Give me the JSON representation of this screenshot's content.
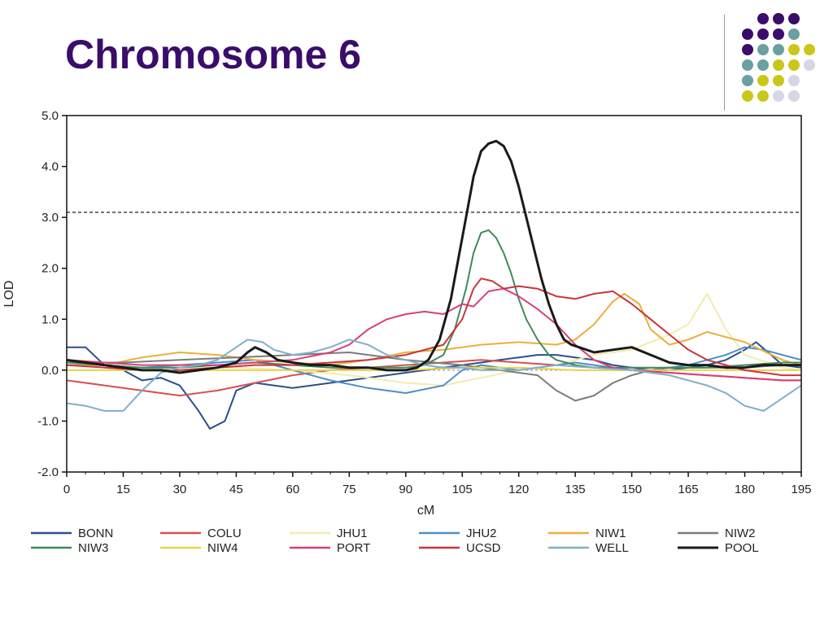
{
  "slide": {
    "title": "Chromosome 6",
    "deco_colors": {
      "purple": "#3a0d6b",
      "teal": "#6b9fa0",
      "yellow": "#c9c71a",
      "lavender": "#d6d6e6"
    }
  },
  "chart_data": {
    "type": "line",
    "title": "",
    "xlabel": "cM",
    "ylabel": "LOD",
    "xlim": [
      0,
      195
    ],
    "ylim": [
      -2.0,
      5.0
    ],
    "xticks": [
      0,
      15,
      30,
      45,
      60,
      75,
      90,
      105,
      120,
      135,
      150,
      165,
      180,
      195
    ],
    "xtick_labels": [
      "0",
      "15",
      "30",
      "45",
      "60",
      "75",
      "90",
      "105",
      "120",
      "135",
      "150",
      "165",
      "180",
      "195"
    ],
    "yticks": [
      -2,
      -1,
      0,
      1,
      2,
      3,
      4,
      5
    ],
    "ytick_labels": [
      "-2.0",
      "-1.0",
      "0.0",
      "1.0",
      "2.0",
      "3.0",
      "4.0",
      "5.0"
    ],
    "threshold": 3.1,
    "grid": false,
    "legend_position": "bottom",
    "series": [
      {
        "name": "BONN",
        "color": "#2c4f8c",
        "x": [
          0,
          5,
          10,
          15,
          20,
          25,
          30,
          35,
          38,
          42,
          45,
          50,
          55,
          60,
          65,
          70,
          75,
          80,
          85,
          90,
          95,
          100,
          105,
          110,
          115,
          120,
          125,
          130,
          135,
          140,
          145,
          150,
          155,
          160,
          165,
          170,
          175,
          180,
          183,
          187,
          190,
          195
        ],
        "y": [
          0.45,
          0.45,
          0.1,
          0.0,
          -0.2,
          -0.15,
          -0.3,
          -0.8,
          -1.15,
          -1.0,
          -0.4,
          -0.25,
          -0.3,
          -0.35,
          -0.3,
          -0.25,
          -0.2,
          -0.15,
          -0.1,
          -0.05,
          0.0,
          0.05,
          0.1,
          0.15,
          0.2,
          0.25,
          0.3,
          0.3,
          0.25,
          0.2,
          0.1,
          0.05,
          0.0,
          0.0,
          0.05,
          0.1,
          0.2,
          0.4,
          0.55,
          0.3,
          0.1,
          0.05
        ]
      },
      {
        "name": "COLU",
        "color": "#d65050",
        "x": [
          0,
          10,
          20,
          30,
          40,
          50,
          60,
          70,
          80,
          90,
          100,
          110,
          120,
          130,
          140,
          150,
          160,
          170,
          180,
          190,
          195
        ],
        "y": [
          -0.2,
          -0.3,
          -0.4,
          -0.5,
          -0.4,
          -0.25,
          -0.1,
          0.0,
          0.05,
          0.1,
          0.15,
          0.2,
          0.15,
          0.1,
          0.05,
          0.0,
          -0.05,
          -0.1,
          -0.15,
          -0.2,
          -0.2
        ]
      },
      {
        "name": "JHU1",
        "color": "#f2ecb0",
        "x": [
          0,
          15,
          30,
          45,
          60,
          75,
          90,
          100,
          110,
          120,
          130,
          140,
          150,
          160,
          165,
          170,
          175,
          180,
          190,
          195
        ],
        "y": [
          0.0,
          0.0,
          0.05,
          0.05,
          0.0,
          -0.1,
          -0.25,
          -0.3,
          -0.15,
          0.0,
          0.1,
          0.3,
          0.4,
          0.7,
          0.9,
          1.5,
          0.8,
          0.3,
          0.05,
          0.0
        ]
      },
      {
        "name": "JHU2",
        "color": "#4d8fc8",
        "x": [
          0,
          10,
          20,
          30,
          40,
          50,
          60,
          70,
          80,
          90,
          100,
          105,
          110,
          115,
          120,
          125,
          130,
          135,
          140,
          145,
          150,
          155,
          160,
          165,
          170,
          175,
          180,
          185,
          190,
          195
        ],
        "y": [
          0.1,
          0.1,
          0.05,
          0.1,
          0.15,
          0.2,
          0.0,
          -0.2,
          -0.35,
          -0.45,
          -0.3,
          0.0,
          0.1,
          0.05,
          0.0,
          0.05,
          0.1,
          0.15,
          0.1,
          0.05,
          0.0,
          0.0,
          0.05,
          0.1,
          0.2,
          0.3,
          0.45,
          0.4,
          0.3,
          0.2
        ]
      },
      {
        "name": "NIW1",
        "color": "#e8b03a",
        "x": [
          0,
          10,
          20,
          30,
          40,
          50,
          60,
          70,
          80,
          90,
          100,
          110,
          120,
          130,
          135,
          140,
          145,
          148,
          152,
          155,
          160,
          165,
          170,
          180,
          190,
          195
        ],
        "y": [
          0.1,
          0.1,
          0.25,
          0.35,
          0.3,
          0.2,
          0.15,
          0.1,
          0.2,
          0.35,
          0.4,
          0.5,
          0.55,
          0.5,
          0.6,
          0.9,
          1.35,
          1.5,
          1.3,
          0.8,
          0.5,
          0.6,
          0.75,
          0.55,
          0.2,
          0.1
        ]
      },
      {
        "name": "NIW2",
        "color": "#7b7b7b",
        "x": [
          0,
          15,
          30,
          45,
          60,
          75,
          90,
          105,
          115,
          125,
          130,
          135,
          140,
          145,
          150,
          155,
          160,
          170,
          180,
          190,
          195
        ],
        "y": [
          0.15,
          0.15,
          0.2,
          0.25,
          0.3,
          0.35,
          0.2,
          0.1,
          0.0,
          -0.1,
          -0.4,
          -0.6,
          -0.5,
          -0.25,
          -0.1,
          0.0,
          0.05,
          0.05,
          0.05,
          0.1,
          0.1
        ]
      },
      {
        "name": "NIW3",
        "color": "#3f8a5a",
        "x": [
          0,
          10,
          20,
          30,
          40,
          50,
          60,
          70,
          80,
          90,
          95,
          100,
          103,
          106,
          108,
          110,
          112,
          114,
          116,
          118,
          120,
          122,
          125,
          128,
          130,
          135,
          140,
          150,
          160,
          170,
          180,
          190,
          195
        ],
        "y": [
          0.15,
          0.1,
          0.05,
          0.05,
          0.1,
          0.15,
          0.1,
          0.05,
          0.05,
          0.05,
          0.1,
          0.3,
          0.8,
          1.6,
          2.3,
          2.7,
          2.75,
          2.6,
          2.3,
          1.9,
          1.4,
          1.0,
          0.6,
          0.3,
          0.2,
          0.1,
          0.05,
          0.05,
          0.05,
          0.05,
          0.1,
          0.15,
          0.15
        ]
      },
      {
        "name": "NIW4",
        "color": "#e8d44a",
        "x": [
          0,
          15,
          30,
          45,
          60,
          75,
          90,
          105,
          120,
          135,
          150,
          165,
          180,
          195
        ],
        "y": [
          0.0,
          0.0,
          0.0,
          0.0,
          0.0,
          0.0,
          0.0,
          0.05,
          0.05,
          0.0,
          0.0,
          0.0,
          0.0,
          0.0
        ]
      },
      {
        "name": "PORT",
        "color": "#d63f7e",
        "x": [
          0,
          10,
          20,
          30,
          40,
          50,
          60,
          70,
          75,
          80,
          85,
          90,
          95,
          100,
          105,
          108,
          112,
          116,
          120,
          125,
          130,
          135,
          140,
          145,
          150,
          160,
          170,
          180,
          190,
          195
        ],
        "y": [
          0.2,
          0.15,
          0.1,
          0.1,
          0.1,
          0.15,
          0.2,
          0.35,
          0.5,
          0.8,
          1.0,
          1.1,
          1.15,
          1.1,
          1.3,
          1.25,
          1.55,
          1.6,
          1.45,
          1.2,
          0.9,
          0.5,
          0.2,
          0.05,
          0.0,
          -0.05,
          -0.1,
          -0.15,
          -0.2,
          -0.2
        ]
      },
      {
        "name": "UCSD",
        "color": "#c9353a",
        "x": [
          0,
          10,
          20,
          30,
          40,
          50,
          60,
          70,
          80,
          90,
          100,
          105,
          108,
          110,
          113,
          116,
          120,
          125,
          130,
          135,
          140,
          145,
          150,
          155,
          160,
          165,
          170,
          180,
          190,
          195
        ],
        "y": [
          0.1,
          0.05,
          0.0,
          0.0,
          0.05,
          0.1,
          0.1,
          0.15,
          0.2,
          0.3,
          0.5,
          1.0,
          1.6,
          1.8,
          1.75,
          1.6,
          1.65,
          1.6,
          1.45,
          1.4,
          1.5,
          1.55,
          1.3,
          1.0,
          0.7,
          0.4,
          0.2,
          0.0,
          -0.1,
          -0.1
        ]
      },
      {
        "name": "WELL",
        "color": "#7fb0c7",
        "x": [
          0,
          5,
          10,
          15,
          20,
          25,
          30,
          35,
          40,
          45,
          48,
          52,
          55,
          60,
          65,
          70,
          75,
          80,
          85,
          90,
          95,
          100,
          105,
          110,
          120,
          130,
          140,
          150,
          160,
          170,
          175,
          180,
          185,
          190,
          195
        ],
        "y": [
          -0.65,
          -0.7,
          -0.8,
          -0.8,
          -0.4,
          -0.05,
          0.05,
          0.1,
          0.2,
          0.45,
          0.6,
          0.55,
          0.4,
          0.3,
          0.35,
          0.45,
          0.6,
          0.5,
          0.3,
          0.2,
          0.1,
          0.05,
          0.05,
          0.0,
          0.0,
          0.1,
          0.05,
          0.0,
          -0.1,
          -0.3,
          -0.45,
          -0.7,
          -0.8,
          -0.55,
          -0.3
        ]
      },
      {
        "name": "POOL",
        "color": "#1a1a1a",
        "x": [
          0,
          5,
          10,
          15,
          20,
          25,
          30,
          35,
          40,
          45,
          48,
          50,
          53,
          56,
          60,
          65,
          70,
          75,
          80,
          85,
          90,
          93,
          96,
          99,
          102,
          104,
          106,
          108,
          110,
          112,
          114,
          116,
          118,
          120,
          122,
          124,
          126,
          128,
          130,
          132,
          134,
          136,
          138,
          140,
          145,
          150,
          155,
          160,
          165,
          170,
          175,
          180,
          185,
          190,
          195
        ],
        "y": [
          0.2,
          0.15,
          0.1,
          0.05,
          0.0,
          0.0,
          -0.05,
          0.0,
          0.05,
          0.15,
          0.35,
          0.45,
          0.35,
          0.2,
          0.15,
          0.1,
          0.1,
          0.05,
          0.05,
          0.0,
          0.0,
          0.05,
          0.2,
          0.6,
          1.4,
          2.2,
          3.0,
          3.8,
          4.3,
          4.45,
          4.5,
          4.4,
          4.1,
          3.6,
          3.0,
          2.4,
          1.8,
          1.3,
          0.9,
          0.6,
          0.5,
          0.45,
          0.4,
          0.35,
          0.4,
          0.45,
          0.3,
          0.15,
          0.1,
          0.1,
          0.05,
          0.05,
          0.1,
          0.1,
          0.1
        ]
      }
    ]
  }
}
